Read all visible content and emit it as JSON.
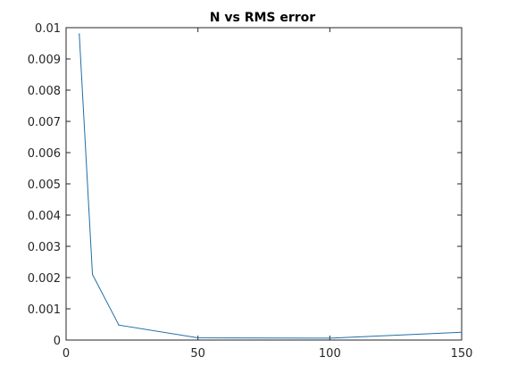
{
  "chart_data": {
    "type": "line",
    "title": "N vs RMS error",
    "xlabel": "",
    "ylabel": "",
    "xlim": [
      0,
      150
    ],
    "ylim": [
      0,
      0.01
    ],
    "x_ticks": [
      "0",
      "50",
      "100",
      "150"
    ],
    "y_ticks": [
      "0",
      "0.001",
      "0.002",
      "0.003",
      "0.004",
      "0.005",
      "0.006",
      "0.007",
      "0.008",
      "0.009",
      "0.01"
    ],
    "grid": false,
    "series": [
      {
        "color": "#1f6ea6",
        "x": [
          5,
          10,
          20,
          50,
          100,
          150
        ],
        "y": [
          0.0098,
          0.0021,
          0.00048,
          7e-05,
          6e-05,
          0.00025
        ]
      }
    ]
  }
}
